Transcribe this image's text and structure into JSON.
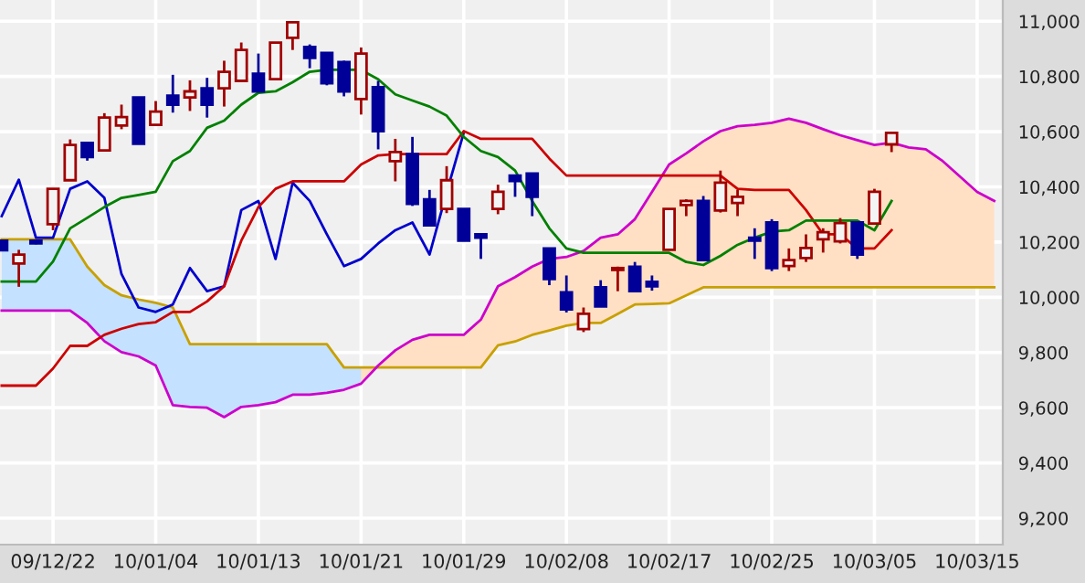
{
  "chart_data": {
    "type": "candlestick",
    "categories": [
      null,
      null,
      null,
      "09/12/22",
      null,
      null,
      null,
      null,
      null,
      "10/01/04",
      null,
      null,
      null,
      null,
      null,
      "10/01/13",
      null,
      null,
      null,
      null,
      null,
      "10/01/21",
      null,
      null,
      null,
      null,
      null,
      "10/01/29",
      null,
      null,
      null,
      null,
      null,
      "10/02/08",
      null,
      null,
      null,
      null,
      null,
      "10/02/17",
      null,
      null,
      null,
      null,
      null,
      "10/02/25",
      null,
      null,
      null,
      null,
      null,
      "10/03/05",
      null,
      null,
      null,
      null,
      null,
      "10/03/15",
      null
    ],
    "ohlc": [
      [
        10205,
        10205,
        10170,
        10170
      ],
      [
        10122,
        10172,
        10038,
        10155
      ],
      [
        10205,
        10205,
        10192,
        10195
      ],
      [
        10265,
        10393,
        10243,
        10393
      ],
      [
        10424,
        10572,
        10424,
        10552
      ],
      [
        10559,
        10559,
        10495,
        10508
      ],
      [
        10532,
        10667,
        10532,
        10651
      ],
      [
        10622,
        10698,
        10609,
        10653
      ],
      [
        10724,
        10724,
        10556,
        10556
      ],
      [
        10625,
        10711,
        10625,
        10673
      ],
      [
        10731,
        10806,
        10669,
        10698
      ],
      [
        10724,
        10786,
        10675,
        10746
      ],
      [
        10757,
        10795,
        10651,
        10698
      ],
      [
        10757,
        10857,
        10691,
        10817
      ],
      [
        10784,
        10923,
        10784,
        10896
      ],
      [
        10810,
        10883,
        10746,
        10746
      ],
      [
        10790,
        10923,
        10790,
        10923
      ],
      [
        10940,
        10996,
        10896,
        10996
      ],
      [
        10907,
        10916,
        10830,
        10867
      ],
      [
        10885,
        10885,
        10768,
        10775
      ],
      [
        10852,
        10857,
        10728,
        10746
      ],
      [
        10718,
        10905,
        10662,
        10883
      ],
      [
        10761,
        10784,
        10536,
        10602
      ],
      [
        10493,
        10574,
        10420,
        10526
      ],
      [
        10519,
        10581,
        10331,
        10338
      ],
      [
        10355,
        10389,
        10261,
        10261
      ],
      [
        10320,
        10475,
        10305,
        10424
      ],
      [
        10320,
        10320,
        10205,
        10205
      ],
      [
        10228,
        10232,
        10139,
        10216
      ],
      [
        10320,
        10408,
        10301,
        10382
      ],
      [
        10441,
        10441,
        10364,
        10421
      ],
      [
        10448,
        10448,
        10294,
        10364
      ],
      [
        10177,
        10177,
        10044,
        10066
      ],
      [
        10018,
        10079,
        9945,
        9956
      ],
      [
        9885,
        9963,
        9874,
        9940
      ],
      [
        10036,
        10062,
        9967,
        9967
      ],
      [
        10099,
        10111,
        10022,
        10106
      ],
      [
        10111,
        10128,
        10022,
        10022
      ],
      [
        10056,
        10079,
        10024,
        10040
      ],
      [
        10172,
        10320,
        10172,
        10320
      ],
      [
        10334,
        10355,
        10294,
        10349
      ],
      [
        10349,
        10367,
        10135,
        10135
      ],
      [
        10314,
        10459,
        10307,
        10415
      ],
      [
        10342,
        10389,
        10294,
        10364
      ],
      [
        10216,
        10250,
        10139,
        10205
      ],
      [
        10271,
        10283,
        10095,
        10106
      ],
      [
        10113,
        10177,
        10095,
        10135
      ],
      [
        10142,
        10228,
        10128,
        10179
      ],
      [
        10210,
        10250,
        10162,
        10236
      ],
      [
        10203,
        10287,
        10195,
        10269
      ],
      [
        10271,
        10271,
        10139,
        10155
      ],
      [
        10267,
        10393,
        10267,
        10382
      ],
      [
        10554,
        10596,
        10526,
        10596
      ],
      null,
      null,
      null,
      null,
      null,
      null
    ],
    "colors": [
      "#000099",
      "#a00000",
      "#000099",
      "#a00000",
      "#a00000",
      "#000099",
      "#a00000",
      "#a00000",
      "#000099",
      "#a00000",
      "#000099",
      "#a00000",
      "#000099",
      "#a00000",
      "#a00000",
      "#000099",
      "#a00000",
      "#a00000",
      "#000099",
      "#000099",
      "#000099",
      "#a00000",
      "#000099",
      "#a00000",
      "#000099",
      "#000099",
      "#a00000",
      "#000099",
      "#000099",
      "#a00000",
      "#000099",
      "#000099",
      "#000099",
      "#000099",
      "#a00000",
      "#000099",
      "#a00000",
      "#000099",
      "#000099",
      "#a00000",
      "#a00000",
      "#000099",
      "#a00000",
      "#a00000",
      "#000099",
      "#000099",
      "#a00000",
      "#a00000",
      "#a00000",
      "#a00000",
      "#000099",
      "#a00000",
      "#a00000",
      null,
      null,
      null,
      null,
      null,
      null
    ],
    "series": [
      {
        "type": "line",
        "color": "#c8a000",
        "values": [
          10210,
          10210,
          10210,
          10210,
          10210,
          10111,
          10044,
          10007,
          9992,
          9980,
          9963,
          9830,
          9830,
          9830,
          9830,
          9830,
          9830,
          9830,
          9830,
          9830,
          9746,
          9746,
          9746,
          9746,
          9746,
          9746,
          9746,
          9746,
          9746,
          9826,
          9840,
          9864,
          9880,
          9897,
          9907,
          9907,
          9940,
          9974,
          9976,
          9978,
          10007,
          10036,
          10036,
          10036,
          10036,
          10036,
          10036,
          10036,
          10036,
          10036,
          10036,
          10036,
          10036,
          10036,
          10036,
          10036,
          10036,
          10036,
          10036
        ],
        "lower": [
          9952,
          9952,
          9952,
          9952,
          9952,
          9907,
          9841,
          9801,
          9786,
          9753,
          9609,
          9603,
          9600,
          9566,
          9603,
          9609,
          9620,
          9647,
          9647,
          9654,
          9665,
          9687,
          9753,
          null,
          null,
          null,
          null,
          null,
          null,
          null,
          null,
          null,
          null,
          null,
          null,
          null,
          null,
          null,
          null,
          null,
          null,
          null,
          null,
          null,
          null,
          null,
          null,
          null,
          null,
          null,
          null,
          null,
          null,
          null,
          null,
          null,
          null,
          null,
          null
        ],
        "upper": [
          10210,
          10210,
          10210,
          10210,
          10210,
          10111,
          10044,
          10007,
          9992,
          9980,
          9963,
          9830,
          9830,
          9830,
          9830,
          9830,
          9830,
          9830,
          9830,
          9830,
          9746,
          9746,
          9746,
          null,
          null,
          null,
          null,
          null,
          null,
          null,
          null,
          null,
          null,
          null,
          null,
          null,
          null,
          null,
          null,
          null,
          null,
          null,
          null,
          null,
          null,
          null,
          null,
          null,
          null,
          null,
          null,
          null,
          null,
          null,
          null,
          null,
          null,
          null,
          null
        ]
      },
      {
        "type": "line",
        "color": "#cc00cc",
        "values": [
          9952,
          9952,
          9952,
          9952,
          9952,
          9907,
          9841,
          9801,
          9786,
          9753,
          9609,
          9603,
          9600,
          9566,
          9603,
          9609,
          9620,
          9647,
          9647,
          9654,
          9665,
          9687,
          9753,
          9808,
          9846,
          9864,
          9864,
          9864,
          9919,
          10040,
          10073,
          10111,
          10139,
          10146,
          10168,
          10216,
          10228,
          10283,
          10382,
          10481,
          10521,
          10565,
          10602,
          10620,
          10625,
          10632,
          10647,
          10632,
          10609,
          10587,
          10569,
          10552,
          10560,
          10543,
          10536,
          10493,
          10437,
          10382,
          10349
        ],
        "lower": [
          null,
          null,
          null,
          null,
          null,
          null,
          null,
          null,
          null,
          null,
          null,
          null,
          null,
          null,
          null,
          null,
          null,
          null,
          null,
          null,
          null,
          9746,
          9746,
          9746,
          9746,
          9746,
          9746,
          9746,
          9746,
          9826,
          9840,
          9864,
          9880,
          9897,
          9907,
          9907,
          9940,
          9974,
          9976,
          9978,
          10007,
          10036,
          10036,
          10036,
          10036,
          10036,
          10036,
          10036,
          10036,
          10036,
          10036,
          10036,
          10036,
          10036,
          10036,
          10036,
          10036,
          10036,
          10036
        ],
        "upper": [
          null,
          null,
          null,
          null,
          null,
          null,
          null,
          null,
          null,
          null,
          null,
          null,
          null,
          null,
          null,
          null,
          null,
          null,
          null,
          null,
          null,
          9687,
          9753,
          9808,
          9846,
          9864,
          9864,
          9864,
          9919,
          10040,
          10073,
          10111,
          10139,
          10146,
          10168,
          10216,
          10228,
          10283,
          10382,
          10481,
          10521,
          10565,
          10602,
          10620,
          10625,
          10632,
          10647,
          10632,
          10609,
          10587,
          10569,
          10552,
          10560,
          10543,
          10536,
          10493,
          10437,
          10382,
          10349
        ]
      },
      {
        "type": "line",
        "color": "#0000cc",
        "values": [
          10294,
          10426,
          10216,
          10216,
          10393,
          10420,
          10360,
          10084,
          9963,
          9947,
          9974,
          10106,
          10022,
          10040,
          10316,
          10349,
          10139,
          10415,
          10349,
          10228,
          10113,
          10139,
          10195,
          10243,
          10271,
          10155,
          10380,
          10596,
          null,
          null,
          null,
          null,
          null,
          null,
          null,
          null,
          null,
          null,
          null,
          null,
          null,
          null,
          null,
          null,
          null,
          null,
          null,
          null,
          null,
          null,
          null,
          null,
          null,
          null,
          null,
          null,
          null,
          null,
          null
        ]
      },
      {
        "type": "line",
        "color": "#cc0000",
        "values": [
          9680,
          9680,
          9680,
          9742,
          9824,
          9824,
          9864,
          9886,
          9903,
          9910,
          9947,
          9947,
          9985,
          10040,
          10205,
          10327,
          10393,
          10420,
          10420,
          10420,
          10420,
          10481,
          10514,
          10519,
          10519,
          10519,
          10519,
          10602,
          10574,
          10574,
          10574,
          10574,
          10503,
          10441,
          10441,
          10441,
          10441,
          10441,
          10441,
          10441,
          10441,
          10441,
          10441,
          10393,
          10389,
          10389,
          10389,
          10316,
          10228,
          10228,
          10177,
          10177,
          10243,
          null,
          null,
          null,
          null,
          null,
          null
        ]
      },
      {
        "type": "line",
        "color": "#008000",
        "values": [
          10057,
          10057,
          10057,
          10130,
          10250,
          10288,
          10327,
          10360,
          10371,
          10382,
          10493,
          10530,
          10614,
          10640,
          10698,
          10741,
          10746,
          10779,
          10817,
          10824,
          10824,
          10824,
          10790,
          10735,
          10713,
          10691,
          10658,
          10581,
          10530,
          10508,
          10459,
          10349,
          10250,
          10177,
          10161,
          10161,
          10161,
          10161,
          10161,
          10161,
          10128,
          10117,
          10150,
          10190,
          10216,
          10238,
          10243,
          10278,
          10278,
          10278,
          10278,
          10243,
          10349,
          null,
          null,
          null,
          null,
          null,
          null
        ]
      }
    ],
    "ylim": [
      9104,
      11077
    ],
    "yticks": [
      {
        "value": 9200,
        "label": "9,200"
      },
      {
        "value": 9400,
        "label": "9,400"
      },
      {
        "value": 9600,
        "label": "9,600"
      },
      {
        "value": 9800,
        "label": "9,800"
      },
      {
        "value": 10000,
        "label": "10,000"
      },
      {
        "value": 10200,
        "label": "10,200"
      },
      {
        "value": 10400,
        "label": "10,400"
      },
      {
        "value": 10600,
        "label": "10,600"
      },
      {
        "value": 10800,
        "label": "10,800"
      },
      {
        "value": 11000,
        "label": "11,000"
      }
    ],
    "grid": true
  }
}
